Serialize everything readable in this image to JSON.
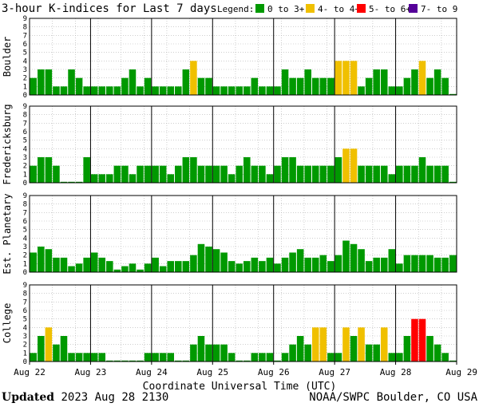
{
  "header": {
    "title": "3-hour K-indices for Last 7 days",
    "legend_label": "Legend:"
  },
  "legend": [
    {
      "label": "0 to 3+",
      "color": "#009900"
    },
    {
      "label": "4- to 4+",
      "color": "#f0c000"
    },
    {
      "label": "5- to 6+",
      "color": "#ff0000"
    },
    {
      "label": "7- to 9",
      "color": "#550099"
    }
  ],
  "footer": {
    "updated_label": "Updated",
    "updated_time": "2023 Aug 28 2130",
    "source": "NOAA/SWPC Boulder, CO USA"
  },
  "chart_data": {
    "type": "bar",
    "xlabel": "Coordinate Universal Time (UTC)",
    "x_ticks": [
      "Aug 22",
      "Aug 23",
      "Aug 24",
      "Aug 25",
      "Aug 26",
      "Aug 27",
      "Aug 28",
      "Aug 29"
    ],
    "y_ticks": [
      0,
      1,
      2,
      3,
      4,
      5,
      6,
      7,
      8,
      9
    ],
    "ylim": [
      0,
      9
    ],
    "grid": true,
    "bins_per_day": 8,
    "panels": [
      {
        "name": "Boulder",
        "values": [
          2,
          3,
          3,
          1,
          1,
          3,
          2,
          1,
          1,
          1,
          1,
          1,
          2,
          3,
          1,
          2,
          1,
          1,
          1,
          1,
          3,
          4,
          2,
          2,
          1,
          1,
          1,
          1,
          1,
          2,
          1,
          1,
          1,
          3,
          2,
          2,
          3,
          2,
          2,
          2,
          4,
          4,
          4,
          1,
          2,
          3,
          3,
          1,
          1,
          2,
          3,
          4,
          2,
          3,
          2,
          0
        ]
      },
      {
        "name": "Fredericksburg",
        "values": [
          2,
          3,
          3,
          2,
          0,
          0,
          0,
          3,
          1,
          1,
          1,
          2,
          2,
          1,
          2,
          2,
          2,
          2,
          1,
          2,
          3,
          3,
          2,
          2,
          2,
          2,
          1,
          2,
          3,
          2,
          2,
          1,
          2,
          3,
          3,
          2,
          2,
          2,
          2,
          2,
          3,
          4,
          4,
          2,
          2,
          2,
          2,
          1,
          2,
          2,
          2,
          3,
          2,
          2,
          2,
          0
        ]
      },
      {
        "name": "Est. Planetary",
        "values": [
          2.3,
          3,
          2.7,
          1.7,
          1.7,
          0.7,
          1,
          1.7,
          2.3,
          1.7,
          1.3,
          0.3,
          0.7,
          1,
          0.3,
          1,
          1.7,
          0.7,
          1.3,
          1.3,
          1.3,
          2,
          3.3,
          3,
          2.7,
          2.3,
          1.3,
          1,
          1.3,
          1.7,
          1.3,
          1.7,
          1,
          1.7,
          2.3,
          2.7,
          1.7,
          1.7,
          2,
          1.3,
          2,
          3.7,
          3.3,
          2.7,
          1.3,
          1.7,
          1.7,
          2.7,
          1,
          2,
          2,
          2,
          2,
          1.7,
          1.7,
          2
        ]
      },
      {
        "name": "College",
        "values": [
          1,
          3,
          4,
          2,
          3,
          1,
          1,
          1,
          1,
          1,
          0,
          0,
          0,
          0,
          0,
          1,
          1,
          1,
          1,
          0,
          0,
          2,
          3,
          2,
          2,
          2,
          1,
          0,
          0,
          1,
          1,
          1,
          0,
          1,
          2,
          3,
          2,
          4,
          4,
          1,
          1,
          4,
          3,
          4,
          2,
          2,
          4,
          1,
          1,
          3,
          5,
          5,
          3,
          2,
          1,
          0
        ]
      }
    ]
  }
}
